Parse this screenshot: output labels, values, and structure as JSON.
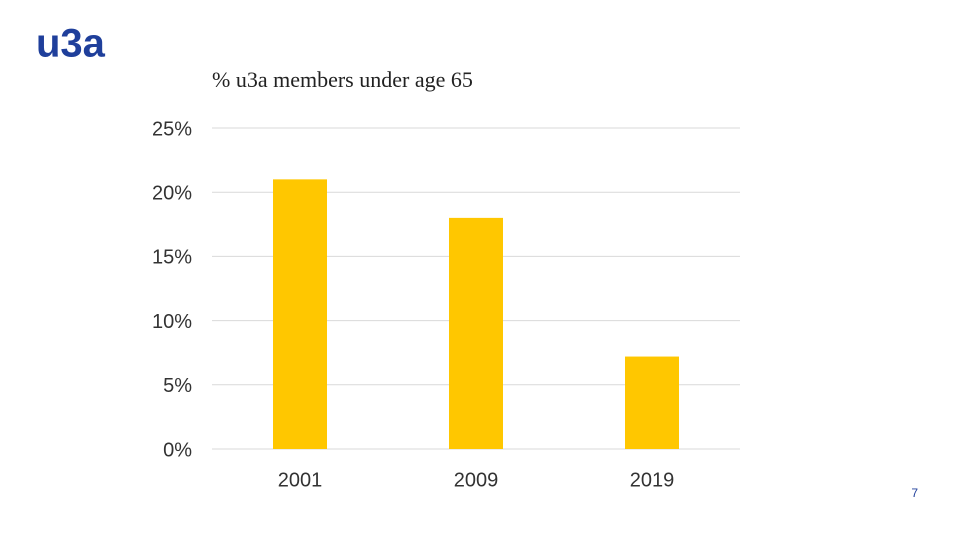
{
  "logo": "u3a",
  "page_number": "7",
  "chart_data": {
    "type": "bar",
    "title": "% u3a members under age 65",
    "categories": [
      "2001",
      "2009",
      "2019"
    ],
    "values": [
      21,
      18,
      7.2
    ],
    "color": "#ffc700",
    "ylim": [
      0,
      25
    ],
    "yticks": [
      {
        "value": 0,
        "label": "0%"
      },
      {
        "value": 5,
        "label": "5%"
      },
      {
        "value": 10,
        "label": "10%"
      },
      {
        "value": 15,
        "label": "15%"
      },
      {
        "value": 20,
        "label": "20%"
      },
      {
        "value": 25,
        "label": "25%"
      }
    ],
    "grid": true
  }
}
